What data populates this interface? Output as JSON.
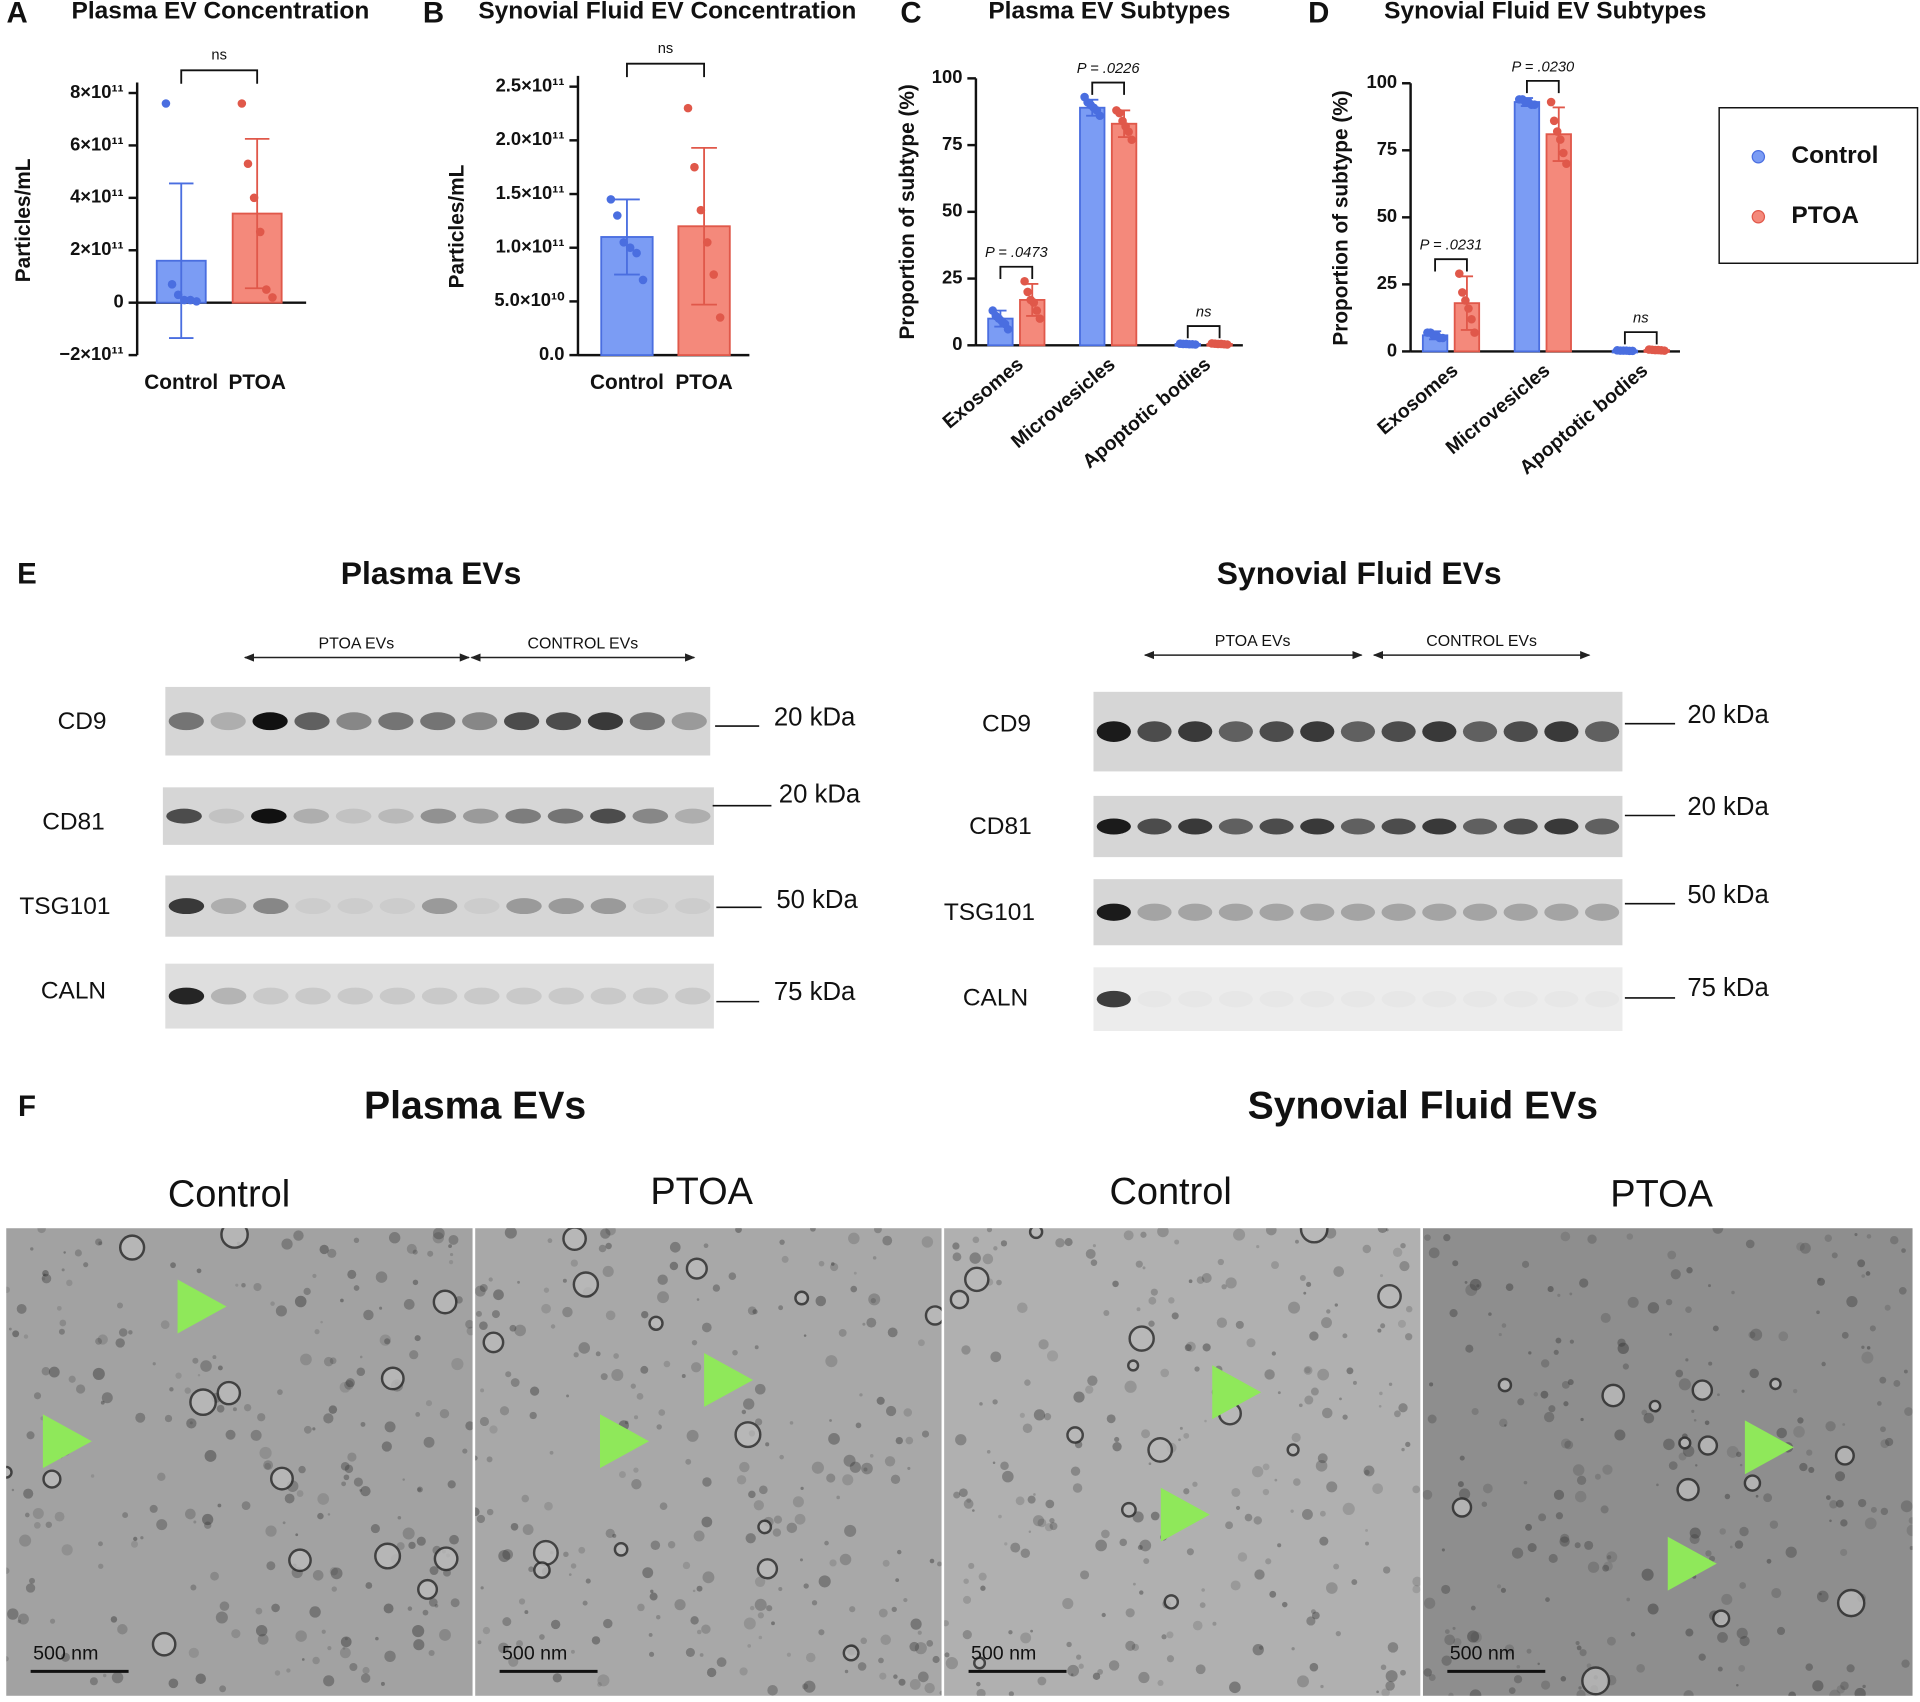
{
  "chart_data": [
    {
      "type": "bar",
      "panel": "A",
      "title": "Plasma EV Concentration",
      "y_label": "Particles/mL",
      "categories": [
        "Control",
        "PTOA"
      ],
      "colors": [
        "#7b9cf4",
        "#f4897b"
      ],
      "values": [
        160000000000.0,
        340000000000.0
      ],
      "errors": [
        295000000000.0,
        285000000000.0
      ],
      "points": [
        [
          760000000000.0,
          70000000000.0,
          30000000000.0,
          10000000000.0,
          10000000000.0,
          5000000000.0
        ],
        [
          760000000000.0,
          530000000000.0,
          400000000000.0,
          270000000000.0,
          50000000000.0,
          20000000000.0
        ]
      ],
      "ylim": [
        -200000000000.0,
        840000000000.0
      ],
      "yticks": [
        {
          "value": -200000000000.0,
          "label": "−2×10¹¹"
        },
        0,
        {
          "value": 200000000000.0,
          "label": "2×10¹¹"
        },
        {
          "value": 400000000000.0,
          "label": "4×10¹¹"
        },
        {
          "value": 600000000000.0,
          "label": "6×10¹¹"
        },
        {
          "value": 800000000000.0,
          "label": "8×10¹¹"
        }
      ],
      "annotation": "ns"
    },
    {
      "type": "bar",
      "panel": "B",
      "title": "Synovial Fluid EV Concentration",
      "y_label": "Particles/mL",
      "categories": [
        "Control",
        "PTOA"
      ],
      "colors": [
        "#7b9cf4",
        "#f4897b"
      ],
      "values": [
        110000000000.0,
        120000000000.0
      ],
      "errors": [
        35000000000.0,
        73000000000.0
      ],
      "points": [
        [
          145000000000.0,
          130000000000.0,
          105000000000.0,
          100000000000.0,
          95000000000.0,
          70000000000.0
        ],
        [
          230000000000.0,
          175000000000.0,
          135000000000.0,
          105000000000.0,
          75000000000.0,
          35000000000.0
        ]
      ],
      "ylim": [
        0,
        260000000000.0
      ],
      "yticks": [
        {
          "value": 0,
          "label": "0.0"
        },
        {
          "value": 50000000000.0,
          "label": "5.0×10¹⁰"
        },
        {
          "value": 100000000000.0,
          "label": "1.0×10¹¹"
        },
        {
          "value": 150000000000.0,
          "label": "1.5×10¹¹"
        },
        {
          "value": 200000000000.0,
          "label": "2.0×10¹¹"
        },
        {
          "value": 250000000000.0,
          "label": "2.5×10¹¹"
        }
      ],
      "annotation": "ns"
    },
    {
      "type": "grouped_bar",
      "panel": "C",
      "title": "Plasma EV Subtypes",
      "y_label": "Proportion of subtype (%)",
      "categories": [
        "Exosomes",
        "Microvesicles",
        "Apoptotic bodies"
      ],
      "series": [
        {
          "name": "Control",
          "color": "#7b9cf4",
          "values": [
            10,
            89,
            0.5
          ],
          "errors": [
            3,
            3,
            0.3
          ],
          "points": [
            [
              13,
              11,
              10,
              9,
              8,
              6
            ],
            [
              93,
              91,
              90,
              89,
              88,
              86
            ],
            [
              0.6,
              0.5,
              0.5,
              0.4,
              0.4,
              0.3
            ]
          ]
        },
        {
          "name": "PTOA",
          "color": "#f4897b",
          "values": [
            17,
            83,
            0.5
          ],
          "errors": [
            6,
            5,
            0.3
          ],
          "points": [
            [
              24,
              20,
              17,
              16,
              13,
              10
            ],
            [
              88,
              87,
              84,
              82,
              80,
              77
            ],
            [
              0.7,
              0.6,
              0.5,
              0.5,
              0.4,
              0.3
            ]
          ]
        }
      ],
      "ylim": [
        0,
        100
      ],
      "yticks": [
        0,
        25,
        50,
        75,
        100
      ],
      "annotations": [
        "P = .0473",
        "P = .0226",
        "ns"
      ]
    },
    {
      "type": "grouped_bar",
      "panel": "D",
      "title": "Synovial Fluid EV Subtypes",
      "y_label": "Proportion of subtype (%)",
      "categories": [
        "Exosomes",
        "Microvesicles",
        "Apoptotic bodies"
      ],
      "series": [
        {
          "name": "Control",
          "color": "#7b9cf4",
          "values": [
            6,
            93,
            0.3
          ],
          "errors": [
            1.5,
            1.5,
            0.2
          ],
          "points": [
            [
              7,
              7,
              6,
              6,
              5,
              5
            ],
            [
              94,
              94,
              93,
              93,
              92,
              92
            ],
            [
              0.4,
              0.3,
              0.3,
              0.3,
              0.2,
              0.2
            ]
          ]
        },
        {
          "name": "PTOA",
          "color": "#f4897b",
          "values": [
            18,
            81,
            0.5
          ],
          "errors": [
            10,
            10,
            0.3
          ],
          "points": [
            [
              29,
              22,
              19,
              16,
              12,
              7
            ],
            [
              93,
              86,
              82,
              79,
              74,
              70
            ],
            [
              0.7,
              0.6,
              0.5,
              0.5,
              0.4,
              0.3
            ]
          ]
        }
      ],
      "ylim": [
        0,
        100
      ],
      "yticks": [
        0,
        25,
        50,
        75,
        100
      ],
      "annotations": [
        "P = .0231",
        "P = .0230",
        "ns"
      ],
      "legend": "right"
    }
  ],
  "blots": {
    "label": "E",
    "sections": [
      {
        "title": "Plasma EVs",
        "groups": [
          "PTOA EVs",
          "CONTROL EVs"
        ],
        "rows": [
          {
            "protein": "CD9",
            "marker": "20 kDa"
          },
          {
            "protein": "CD81",
            "marker": "20 kDa"
          },
          {
            "protein": "TSG101",
            "marker": "50 kDa"
          },
          {
            "protein": "CALN",
            "marker": "75 kDa"
          }
        ]
      },
      {
        "title": "Synovial Fluid EVs",
        "groups": [
          "PTOA EVs",
          "CONTROL EVs"
        ],
        "rows": [
          {
            "protein": "CD9",
            "marker": "20 kDa"
          },
          {
            "protein": "CD81",
            "marker": "20 kDa"
          },
          {
            "protein": "TSG101",
            "marker": "50 kDa"
          },
          {
            "protein": "CALN",
            "marker": "75 kDa"
          }
        ]
      }
    ]
  },
  "micrographs": {
    "label": "F",
    "sections": [
      {
        "title": "Plasma EVs",
        "images": [
          {
            "title": "Control",
            "scale_bar": "500 nm"
          },
          {
            "title": "PTOA",
            "scale_bar": "500 nm"
          }
        ]
      },
      {
        "title": "Synovial Fluid EVs",
        "images": [
          {
            "title": "Control",
            "scale_bar": "500 nm"
          },
          {
            "title": "PTOA",
            "scale_bar": "500 nm"
          }
        ]
      }
    ]
  }
}
